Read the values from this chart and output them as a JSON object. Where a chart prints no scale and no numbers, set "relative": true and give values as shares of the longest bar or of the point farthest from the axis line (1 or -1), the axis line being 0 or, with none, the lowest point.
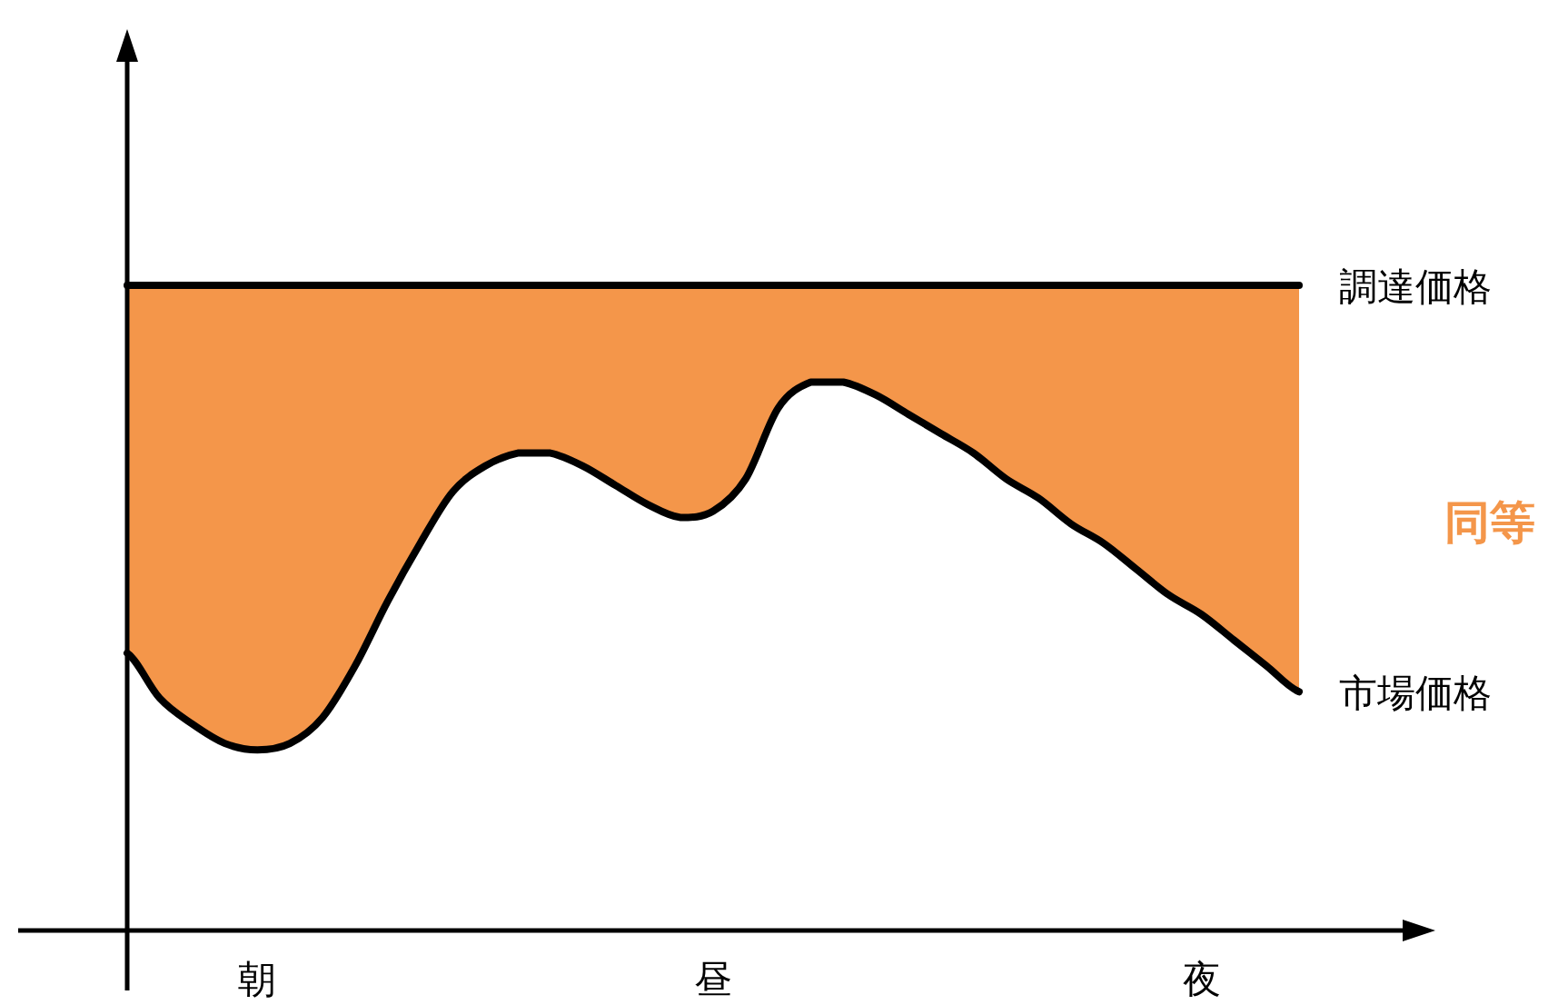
{
  "chart_data": {
    "type": "line",
    "relative": true,
    "categories": [
      null,
      null,
      null,
      null,
      "朝",
      null,
      null,
      null,
      null,
      null,
      null,
      null,
      null,
      null,
      null,
      null,
      null,
      null,
      "昼",
      null,
      null,
      null,
      null,
      null,
      null,
      null,
      null,
      null,
      null,
      null,
      null,
      null,
      null,
      "夜",
      null,
      null,
      null
    ],
    "series": [
      {
        "name": "調達価格",
        "color": "#000000",
        "values": [
          1,
          1,
          1,
          1,
          1,
          1,
          1,
          1,
          1,
          1,
          1,
          1,
          1,
          1,
          1,
          1,
          1,
          1,
          1,
          1,
          1,
          1,
          1,
          1,
          1,
          1,
          1,
          1,
          1,
          1,
          1,
          1,
          1,
          1,
          1,
          1,
          1
        ],
        "lower": [
          0.43,
          0.36,
          0.32,
          0.29,
          0.28,
          0.29,
          0.33,
          0.41,
          0.51,
          0.6,
          0.68,
          0.72,
          0.74,
          0.74,
          0.72,
          0.69,
          0.66,
          0.64,
          0.65,
          0.7,
          0.81,
          0.85,
          0.85,
          0.83,
          0.8,
          0.77,
          0.74,
          0.7,
          0.67,
          0.63,
          0.6,
          0.56,
          0.52,
          0.49,
          0.45,
          0.41,
          0.37
        ],
        "upper": [
          1,
          1,
          1,
          1,
          1,
          1,
          1,
          1,
          1,
          1,
          1,
          1,
          1,
          1,
          1,
          1,
          1,
          1,
          1,
          1,
          1,
          1,
          1,
          1,
          1,
          1,
          1,
          1,
          1,
          1,
          1,
          1,
          1,
          1,
          1,
          1,
          1
        ]
      },
      {
        "name": "市場価格",
        "color": "#000000",
        "values": [
          0.43,
          0.36,
          0.32,
          0.29,
          0.28,
          0.29,
          0.33,
          0.41,
          0.51,
          0.6,
          0.68,
          0.72,
          0.74,
          0.74,
          0.72,
          0.69,
          0.66,
          0.64,
          0.65,
          0.7,
          0.81,
          0.85,
          0.85,
          0.83,
          0.8,
          0.77,
          0.74,
          0.7,
          0.67,
          0.63,
          0.6,
          0.56,
          0.52,
          0.49,
          0.45,
          0.41,
          0.37
        ]
      }
    ],
    "annotations": [
      "同等"
    ]
  }
}
